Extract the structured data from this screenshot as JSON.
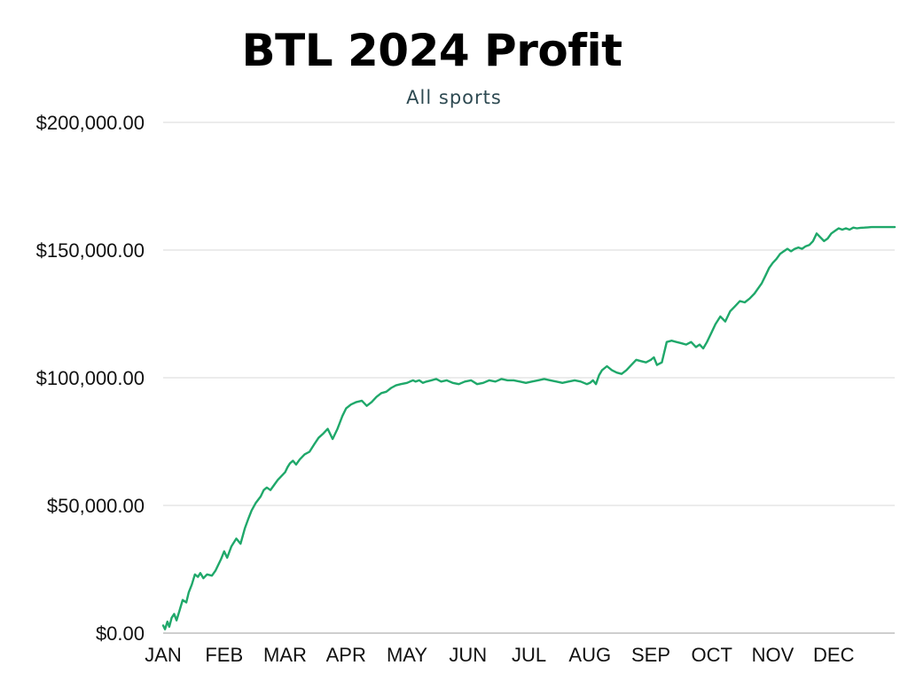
{
  "title": "BTL 2024 Profit",
  "subtitle": "All sports",
  "colors": {
    "line": "#1fa86a",
    "grid": "#d9d9d9",
    "axis": "#b0b0b0"
  },
  "chart_data": {
    "type": "line",
    "title": "BTL 2024 Profit",
    "subtitle": "All sports",
    "xlabel": "",
    "ylabel": "",
    "x_tick_labels": [
      "JAN",
      "FEB",
      "MAR",
      "APR",
      "MAY",
      "JUN",
      "JUL",
      "AUG",
      "SEP",
      "OCT",
      "NOV",
      "DEC"
    ],
    "y_tick_labels": [
      "$0.00",
      "$50,000.00",
      "$100,000.00",
      "$150,000.00",
      "$200,000.00"
    ],
    "y_ticks": [
      0,
      50000,
      100000,
      150000,
      200000
    ],
    "ylim": [
      0,
      200000
    ],
    "xlim": [
      1,
      13
    ],
    "grid": true,
    "legend": "none",
    "series": [
      {
        "x": [
          1.0,
          1.03,
          1.07,
          1.1,
          1.14,
          1.18,
          1.22,
          1.27,
          1.32,
          1.38,
          1.42,
          1.47,
          1.52,
          1.57,
          1.61,
          1.66,
          1.72,
          1.8,
          1.86,
          1.95,
          2.0,
          2.05,
          2.12,
          2.2,
          2.27,
          2.34,
          2.4,
          2.45,
          2.52,
          2.6,
          2.65,
          2.7,
          2.76,
          2.82,
          2.88,
          2.96,
          3.0,
          3.04,
          3.08,
          3.13,
          3.18,
          3.24,
          3.32,
          3.4,
          3.48,
          3.55,
          3.62,
          3.7,
          3.78,
          3.86,
          3.94,
          4.0,
          4.08,
          4.17,
          4.26,
          4.34,
          4.42,
          4.5,
          4.58,
          4.66,
          4.74,
          4.82,
          4.9,
          5.0,
          5.05,
          5.1,
          5.14,
          5.2,
          5.26,
          5.32,
          5.4,
          5.48,
          5.56,
          5.65,
          5.75,
          5.85,
          5.95,
          6.05,
          6.15,
          6.25,
          6.35,
          6.45,
          6.55,
          6.65,
          6.75,
          6.85,
          6.95,
          7.05,
          7.15,
          7.25,
          7.35,
          7.45,
          7.55,
          7.65,
          7.75,
          7.85,
          7.95,
          8.0,
          8.05,
          8.1,
          8.15,
          8.2,
          8.28,
          8.36,
          8.44,
          8.52,
          8.6,
          8.68,
          8.76,
          8.84,
          8.92,
          9.0,
          9.05,
          9.1,
          9.18,
          9.26,
          9.34,
          9.42,
          9.5,
          9.58,
          9.66,
          9.74,
          9.8,
          9.86,
          9.92,
          10.0,
          10.06,
          10.14,
          10.22,
          10.3,
          10.38,
          10.46,
          10.54,
          10.62,
          10.7,
          10.76,
          10.82,
          10.88,
          10.94,
          11.0,
          11.06,
          11.12,
          11.18,
          11.24,
          11.3,
          11.36,
          11.42,
          11.48,
          11.54,
          11.6,
          11.66,
          11.72,
          11.78,
          11.84,
          11.9,
          11.96,
          12.02,
          12.08,
          12.14,
          12.2,
          12.26,
          12.32,
          12.38,
          12.44,
          12.5,
          12.56,
          12.62,
          12.68,
          12.74,
          12.8,
          12.86,
          12.92,
          12.97,
          13.0
        ],
        "y": [
          3000,
          1500,
          4500,
          2500,
          6000,
          7500,
          5000,
          9000,
          13000,
          12000,
          16000,
          19000,
          23000,
          22000,
          23500,
          21500,
          23000,
          22500,
          24500,
          29000,
          32000,
          29500,
          34000,
          37000,
          35000,
          41000,
          45000,
          48000,
          51000,
          53500,
          56000,
          57000,
          56000,
          58000,
          60000,
          62000,
          63000,
          65000,
          66500,
          67500,
          66000,
          68000,
          70000,
          71000,
          74000,
          76500,
          78000,
          80000,
          76000,
          80000,
          85000,
          88000,
          89500,
          90500,
          91000,
          89000,
          90500,
          92500,
          94000,
          94500,
          96000,
          97000,
          97500,
          98000,
          98500,
          99000,
          98500,
          99000,
          98000,
          98500,
          99000,
          99500,
          98500,
          99000,
          98000,
          97500,
          98500,
          99000,
          97500,
          98000,
          99000,
          98500,
          99500,
          99000,
          99000,
          98500,
          98000,
          98500,
          99000,
          99500,
          99000,
          98500,
          98000,
          98500,
          99000,
          98500,
          97500,
          98000,
          99000,
          97500,
          101000,
          103000,
          104500,
          103000,
          102000,
          101500,
          103000,
          105000,
          107000,
          106500,
          106000,
          107000,
          108000,
          105000,
          106000,
          114000,
          114500,
          114000,
          113500,
          113000,
          114000,
          112000,
          113000,
          111500,
          114000,
          118000,
          121000,
          124000,
          122000,
          126000,
          128000,
          130000,
          129500,
          131000,
          133000,
          135000,
          137000,
          140000,
          143000,
          145000,
          146500,
          148500,
          149500,
          150500,
          149500,
          150500,
          151000,
          150500,
          151500,
          152000,
          153500,
          156500,
          155000,
          153500,
          154500,
          156500,
          157500,
          158500,
          158000,
          158500,
          158000,
          158800,
          158500,
          158700,
          158800,
          158900,
          159000,
          159000,
          159000,
          159000,
          159000,
          159000,
          159000,
          159000
        ]
      }
    ]
  }
}
